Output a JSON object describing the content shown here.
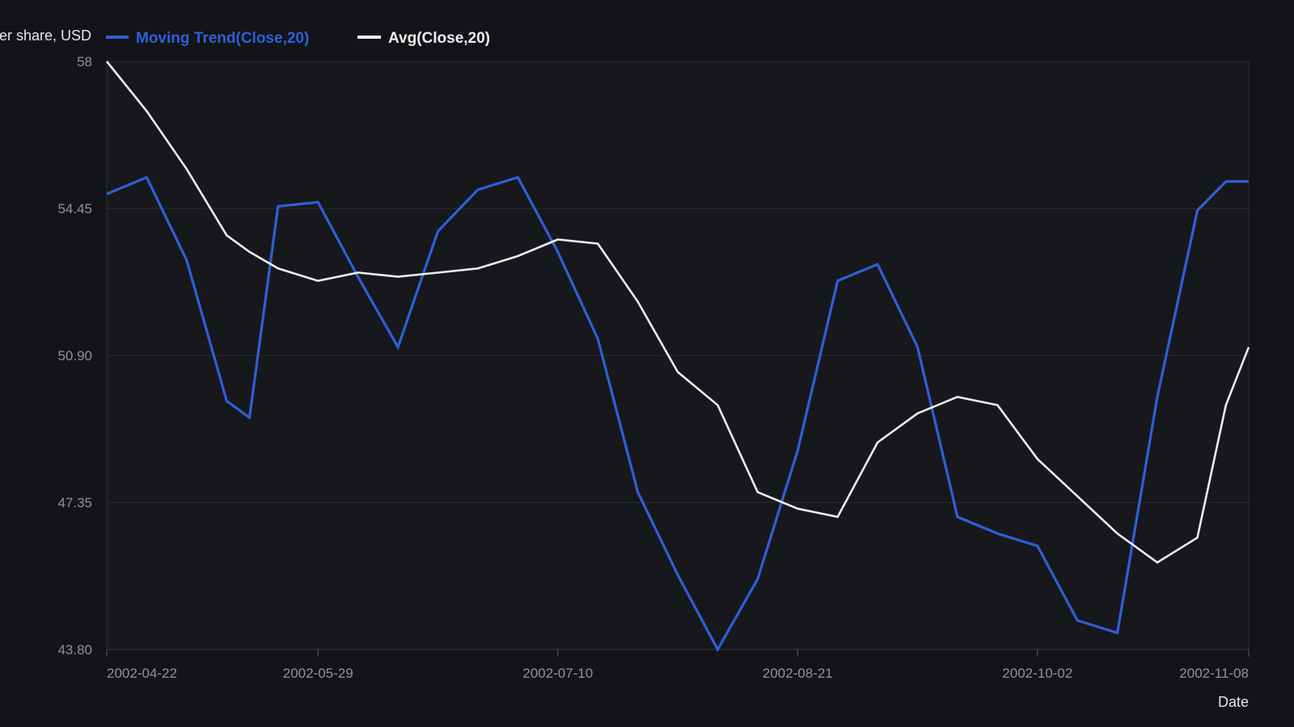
{
  "chart_data": {
    "type": "line",
    "ylabel": "Price per share, USD",
    "xlabel": "Date",
    "ylim": [
      43.8,
      58
    ],
    "y_ticks": [
      "58",
      "54.45",
      "50.90",
      "47.35",
      "43.80"
    ],
    "x_ticks": [
      "2002-04-22",
      "2002-05-29",
      "2002-07-10",
      "2002-08-21",
      "2002-10-02",
      "2002-11-08"
    ],
    "x": [
      "2002-04-22",
      "2002-04-29",
      "2002-05-06",
      "2002-05-13",
      "2002-05-17",
      "2002-05-22",
      "2002-05-29",
      "2002-06-05",
      "2002-06-12",
      "2002-06-19",
      "2002-06-26",
      "2002-07-03",
      "2002-07-10",
      "2002-07-17",
      "2002-07-24",
      "2002-07-31",
      "2002-08-07",
      "2002-08-14",
      "2002-08-21",
      "2002-08-28",
      "2002-09-04",
      "2002-09-11",
      "2002-09-18",
      "2002-09-25",
      "2002-10-02",
      "2002-10-09",
      "2002-10-16",
      "2002-10-23",
      "2002-10-30",
      "2002-11-04",
      "2002-11-08"
    ],
    "series": [
      {
        "name": "Moving Trend(Close,20)",
        "color": "#2f5fd8",
        "values": [
          54.8,
          55.2,
          53.2,
          49.8,
          49.4,
          54.5,
          54.6,
          52.8,
          51.1,
          53.9,
          54.9,
          55.2,
          53.4,
          51.3,
          47.6,
          45.6,
          43.8,
          45.5,
          48.6,
          52.7,
          53.1,
          51.1,
          47.0,
          46.6,
          46.3,
          44.5,
          44.2,
          49.9,
          54.4,
          55.1,
          55.1
        ]
      },
      {
        "name": "Avg(Close,20)",
        "color": "#ececec",
        "values": [
          58.0,
          56.8,
          55.4,
          53.8,
          53.4,
          53.0,
          52.7,
          52.9,
          52.8,
          52.9,
          53.0,
          53.3,
          53.7,
          53.6,
          52.2,
          50.5,
          49.7,
          47.6,
          47.2,
          47.0,
          48.8,
          49.5,
          49.9,
          49.7,
          48.4,
          47.5,
          46.6,
          45.9,
          46.5,
          49.7,
          51.1
        ]
      }
    ],
    "grid": true,
    "legend_position": "top-left"
  }
}
